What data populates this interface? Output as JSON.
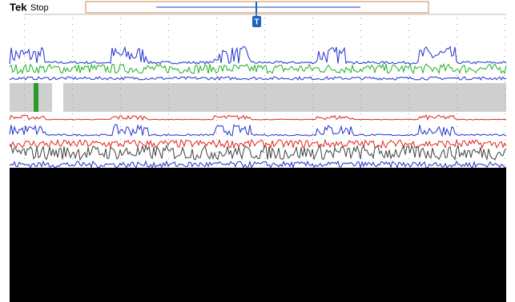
{
  "header": {
    "brand": "Tek",
    "status": "Stop"
  },
  "trigger_marker": "T"
}
